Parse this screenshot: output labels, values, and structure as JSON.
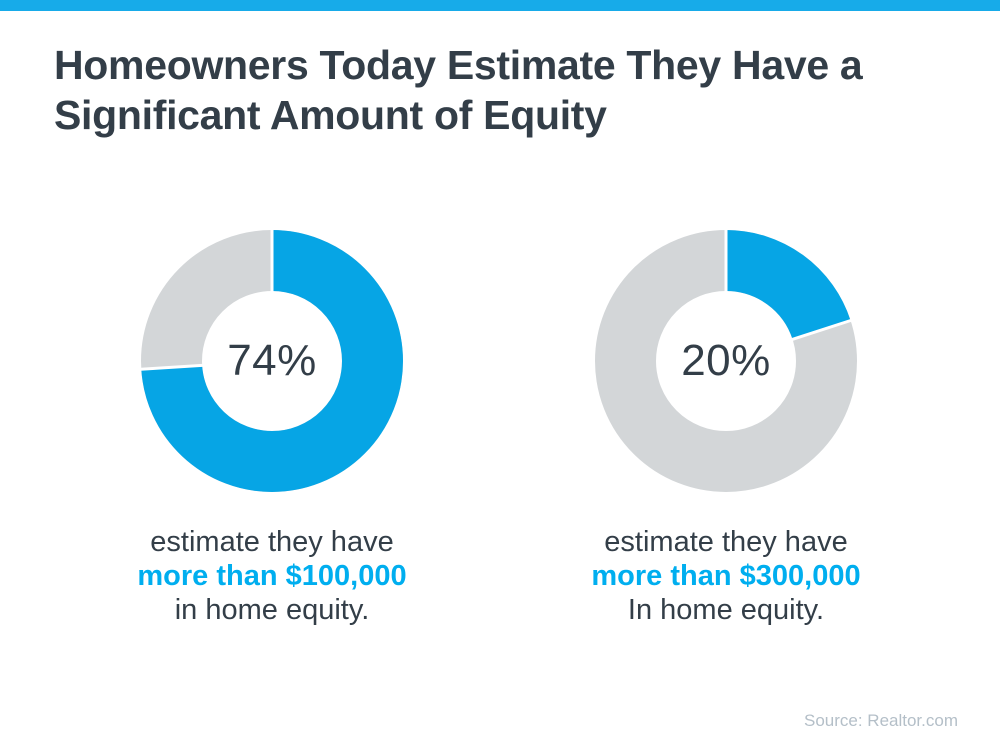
{
  "theme": {
    "background": "#ffffff",
    "top_bar_color": "#17abe9",
    "donut_fill_blue": "#06a5e5",
    "donut_remainder_gray": "#d3d6d8",
    "accent_text_blue": "#00aeef",
    "dark_text": "#333e48",
    "source_text_gray": "#b4bfc8",
    "separator_white": "#ffffff"
  },
  "title": {
    "line1": "Homeowners Today Estimate They Have a",
    "line2": "Significant Amount of Equity"
  },
  "chart_data": [
    {
      "type": "pie",
      "variant": "donut",
      "value_pct": 74,
      "remainder_pct": 26,
      "center_label": "74%",
      "start_angle_deg": 0,
      "direction": "clockwise",
      "fill_color": "#06a5e5",
      "remainder_color": "#d3d6d8",
      "caption": {
        "line1": "estimate they have",
        "line2": "more than $100,000",
        "line3": "in home equity."
      }
    },
    {
      "type": "pie",
      "variant": "donut",
      "value_pct": 20,
      "remainder_pct": 80,
      "center_label": "20%",
      "start_angle_deg": 0,
      "direction": "clockwise",
      "fill_color": "#06a5e5",
      "remainder_color": "#d3d6d8",
      "caption": {
        "line1": "estimate they have",
        "line2": "more than $300,000",
        "line3": "In home equity."
      }
    }
  ],
  "source": {
    "label": "Source: Realtor.com"
  }
}
